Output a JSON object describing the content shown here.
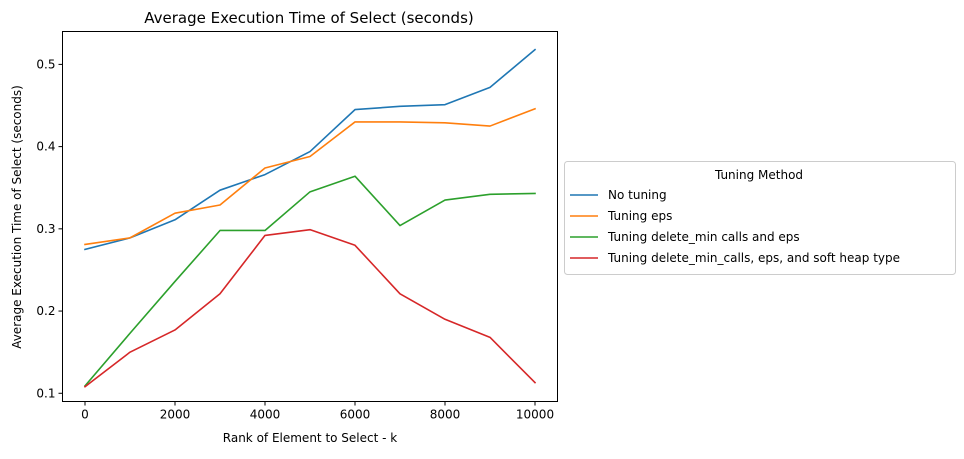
{
  "chart_data": {
    "type": "line",
    "title": "Average Execution Time of Select (seconds)",
    "xlabel": "Rank of Element to Select - k",
    "ylabel": "Average Execution Time of Select (seconds)",
    "xlim": [
      -500,
      10500
    ],
    "ylim": [
      0.09,
      0.54
    ],
    "xticks": [
      0,
      2000,
      4000,
      6000,
      8000,
      10000
    ],
    "yticks": [
      0.1,
      0.2,
      0.3,
      0.4,
      0.5
    ],
    "grid": false,
    "legend": {
      "title": "Tuning Method",
      "placement": "outside-right"
    },
    "x": [
      0,
      1000,
      2000,
      3000,
      4000,
      5000,
      6000,
      7000,
      8000,
      9000,
      10000
    ],
    "series": [
      {
        "name": "No tuning",
        "color": "#1f77b4",
        "values": [
          0.275,
          0.289,
          0.311,
          0.347,
          0.366,
          0.394,
          0.445,
          0.449,
          0.451,
          0.472,
          0.518
        ]
      },
      {
        "name": "Tuning eps",
        "color": "#ff7f0e",
        "values": [
          0.281,
          0.289,
          0.319,
          0.329,
          0.374,
          0.388,
          0.43,
          0.43,
          0.429,
          0.425,
          0.446
        ]
      },
      {
        "name": "Tuning delete_min calls and eps",
        "color": "#2ca02c",
        "values": [
          0.109,
          0.173,
          0.236,
          0.298,
          0.298,
          0.345,
          0.364,
          0.304,
          0.335,
          0.342,
          0.343
        ]
      },
      {
        "name": "Tuning delete_min_calls, eps, and soft heap type",
        "color": "#d62728",
        "values": [
          0.108,
          0.15,
          0.177,
          0.221,
          0.292,
          0.299,
          0.28,
          0.221,
          0.19,
          0.168,
          0.113
        ]
      }
    ]
  }
}
